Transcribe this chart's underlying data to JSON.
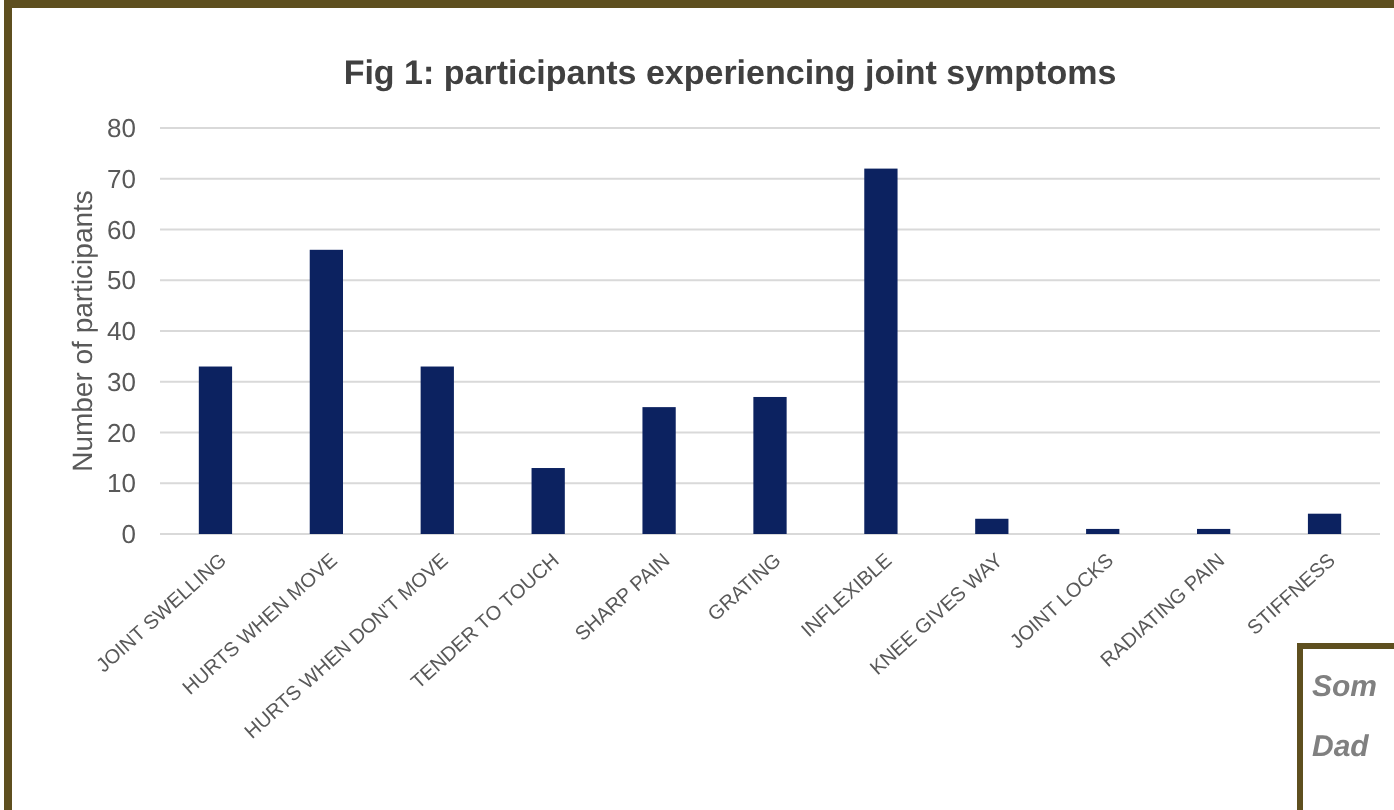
{
  "chart_data": {
    "type": "bar",
    "title": "Fig 1: participants experiencing joint symptoms",
    "ylabel": "Number of participants",
    "categories": [
      "JOINT SWELLING",
      "HURTS WHEN MOVE",
      "HURTS WHEN DON'T MOVE",
      "TENDER TO TOUCH",
      "SHARP PAIN",
      "GRATING",
      "INFLEXIBLE",
      "KNEE GIVES WAY",
      "JOINT LOCKS",
      "RADIATING PAIN",
      "STIFFNESS"
    ],
    "values": [
      33,
      56,
      33,
      13,
      25,
      27,
      72,
      3,
      1,
      1,
      4
    ],
    "color": "#0c2260",
    "ylim": [
      0,
      80
    ],
    "yticks": [
      0,
      10,
      20,
      30,
      40,
      50,
      60,
      70,
      80
    ],
    "grid": "y",
    "annotations": [
      "Som",
      "Dad"
    ]
  }
}
